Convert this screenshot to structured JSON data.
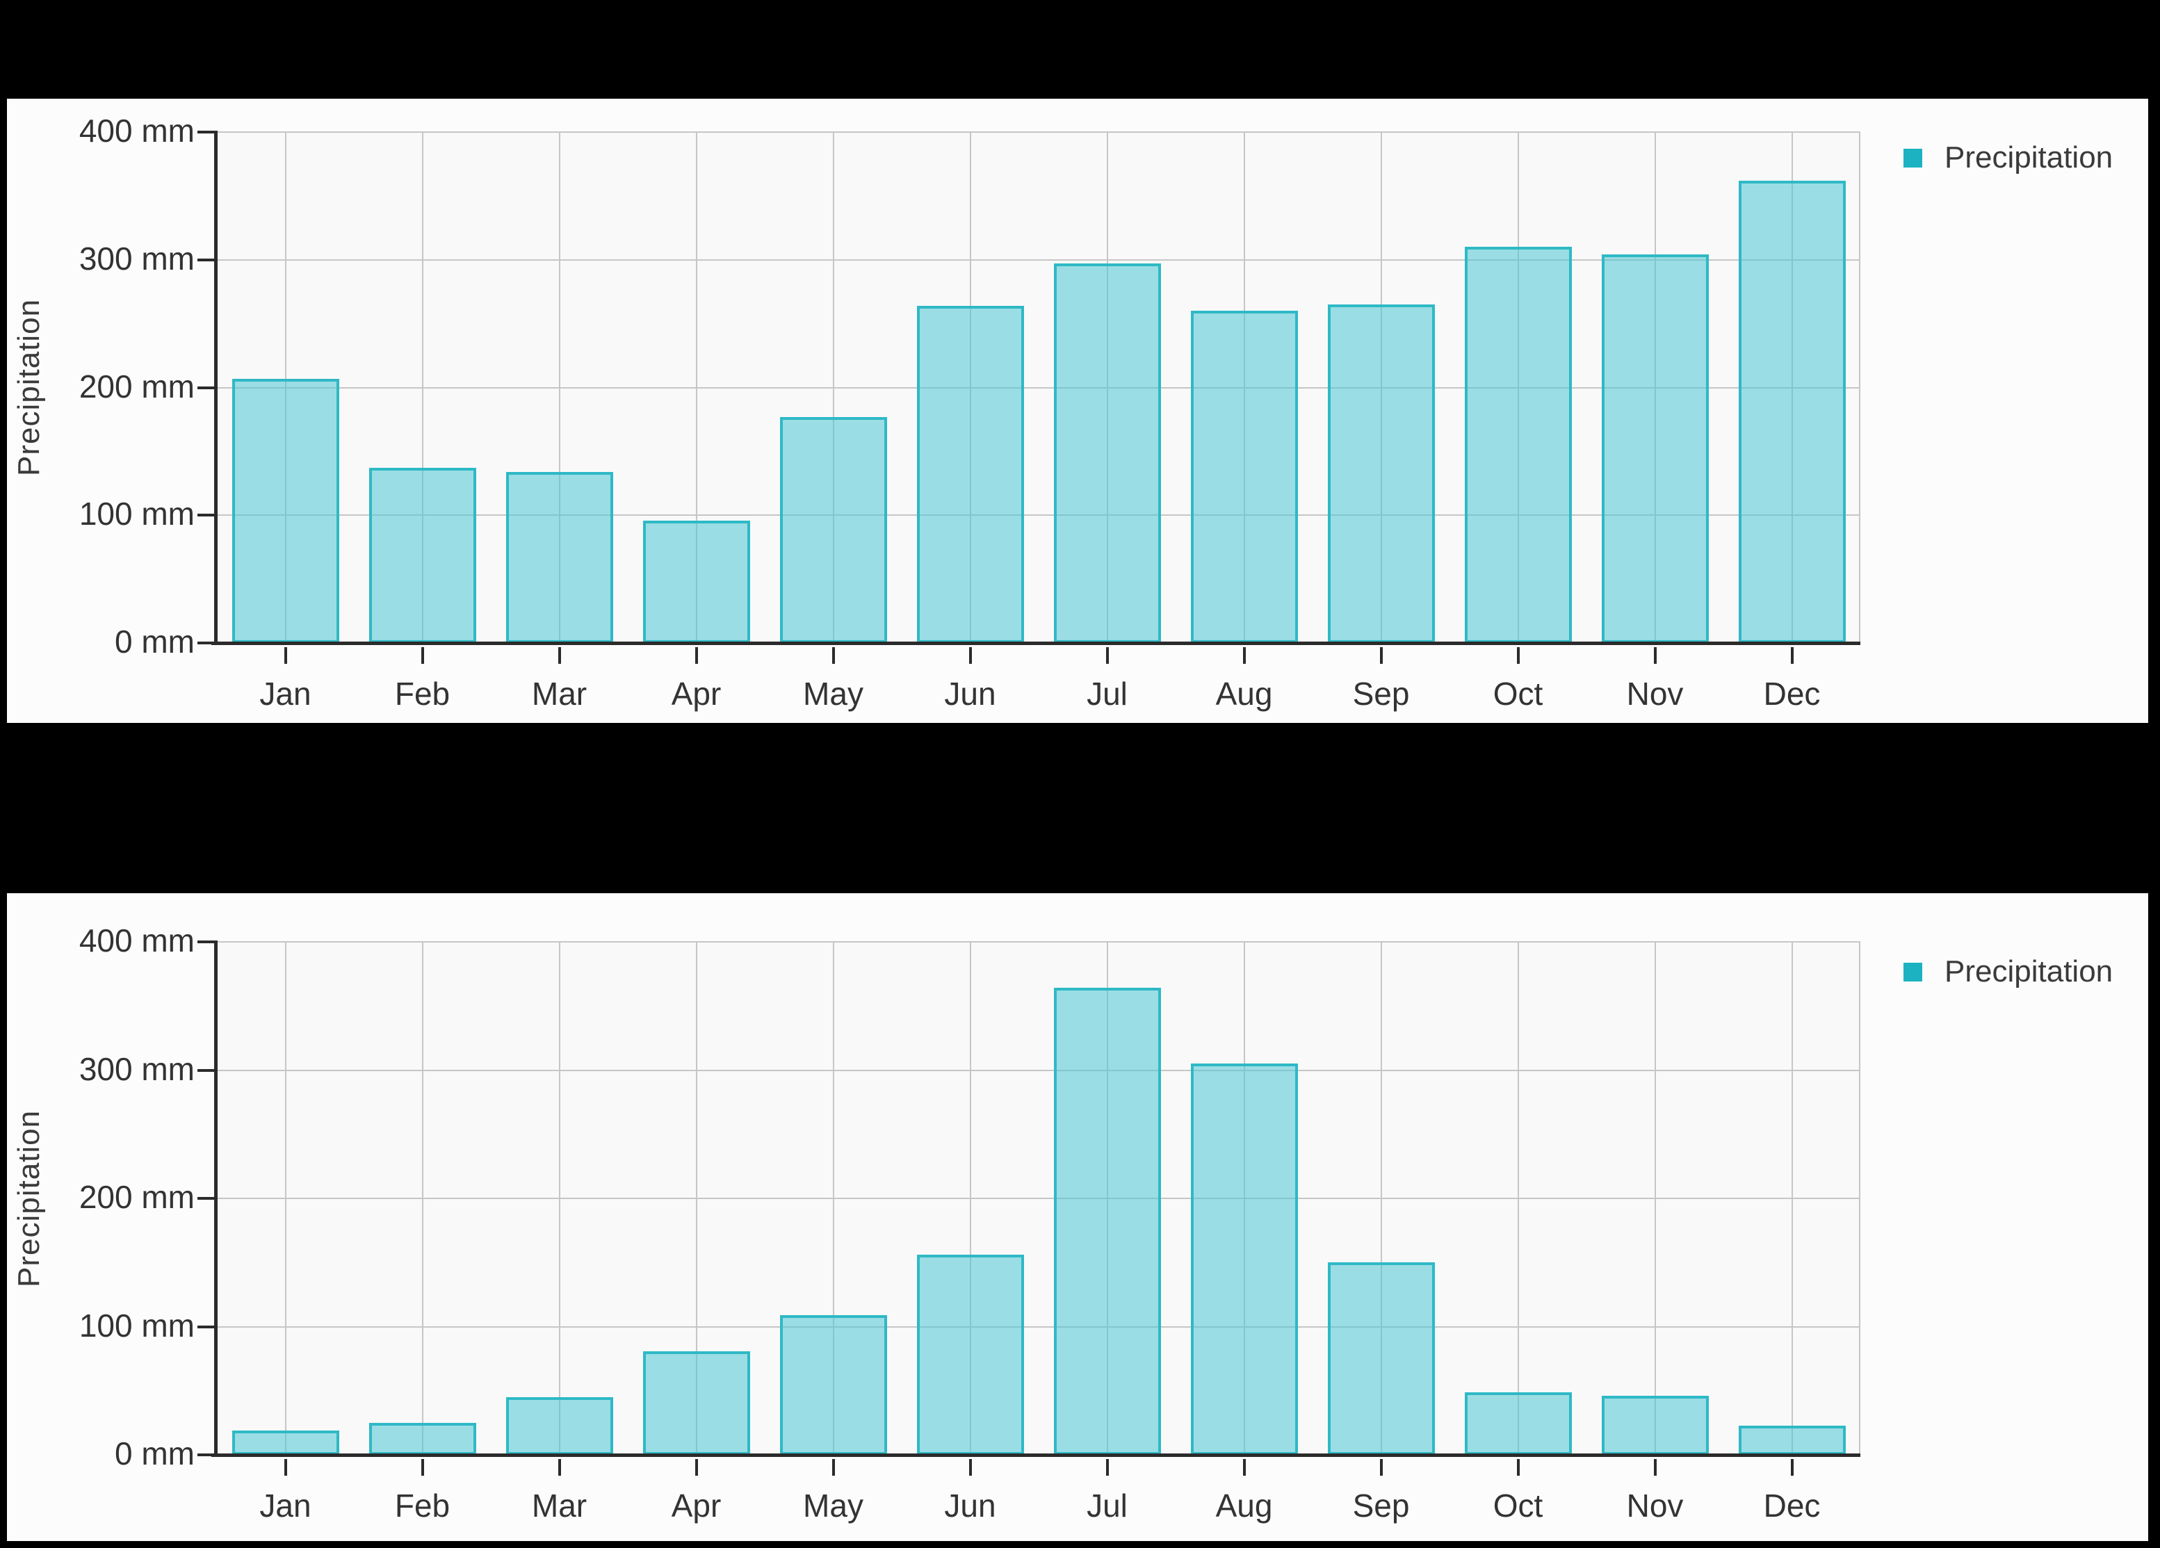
{
  "page": {
    "background_color": "#000000",
    "panel_color": "#fcfcfc"
  },
  "chart_data": [
    {
      "type": "bar",
      "title": "",
      "categories": [
        "Jan",
        "Feb",
        "Mar",
        "Apr",
        "May",
        "Jun",
        "Jul",
        "Aug",
        "Sep",
        "Oct",
        "Nov",
        "Dec"
      ],
      "series": [
        {
          "name": "Precipitation",
          "values": [
            207,
            137,
            134,
            96,
            177,
            264,
            297,
            260,
            265,
            310,
            304,
            362
          ]
        }
      ],
      "xlabel": "",
      "ylabel": "Precipitation",
      "ylim": [
        0,
        400
      ],
      "y_tick_step": 100,
      "y_tick_labels": [
        "400 mm",
        "300 mm",
        "200 mm",
        "100 mm",
        "0 mm"
      ],
      "unit": "mm",
      "grid": true,
      "legend_position": "top-right",
      "legend_marker_color": "#1cb2c1",
      "bar_fill_color": "rgba(77,199,211,0.55)",
      "bar_border_color": "#2fb9c6",
      "gridline_color": "#c6c6c6",
      "axis_color": "#2b2b2b",
      "label_color": "#333333"
    },
    {
      "type": "bar",
      "title": "",
      "categories": [
        "Jan",
        "Feb",
        "Mar",
        "Apr",
        "May",
        "Jun",
        "Jul",
        "Aug",
        "Sep",
        "Oct",
        "Nov",
        "Dec"
      ],
      "series": [
        {
          "name": "Precipitation",
          "values": [
            19,
            25,
            45,
            81,
            109,
            156,
            364,
            305,
            150,
            49,
            46,
            23
          ]
        }
      ],
      "xlabel": "",
      "ylabel": "Precipitation",
      "ylim": [
        0,
        400
      ],
      "y_tick_step": 100,
      "y_tick_labels": [
        "400 mm",
        "300 mm",
        "200 mm",
        "100 mm",
        "0 mm"
      ],
      "unit": "mm",
      "grid": true,
      "legend_position": "top-right",
      "legend_marker_color": "#1cb2c1",
      "bar_fill_color": "rgba(77,199,211,0.55)",
      "bar_border_color": "#2fb9c6",
      "gridline_color": "#c6c6c6",
      "axis_color": "#2b2b2b",
      "label_color": "#333333"
    }
  ]
}
